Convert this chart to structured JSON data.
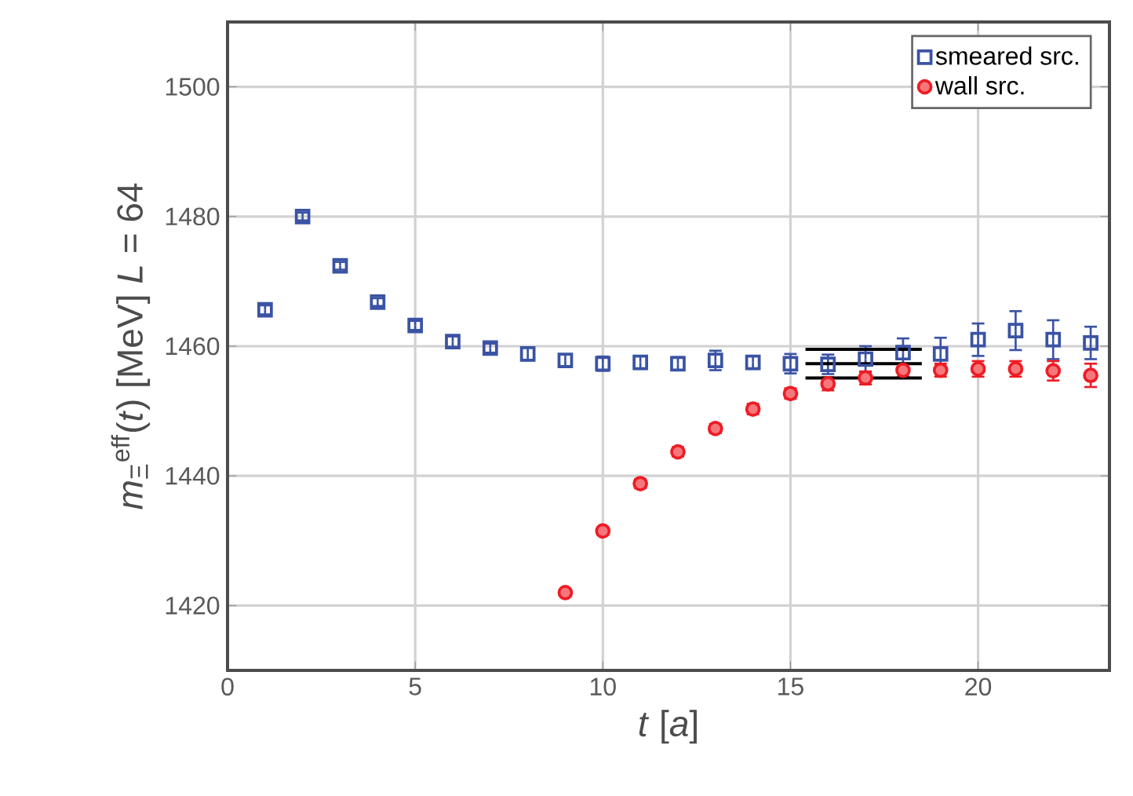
{
  "chart_data": {
    "type": "scatter",
    "xlabel": "*t* [*a*]",
    "ylabel": "*m*$_{Ξ}$$^{eff}$(*t*) [MeV] *L* = 64",
    "xlim": [
      0,
      23.5
    ],
    "ylim": [
      1410,
      1510
    ],
    "xticks": [
      0,
      5,
      10,
      15,
      20
    ],
    "yticks": [
      1420,
      1440,
      1460,
      1480,
      1500
    ],
    "grid": true,
    "legend": "top right",
    "series": [
      {
        "name": "smeared src.",
        "color": "#3a53a4",
        "marker": "square",
        "x": [
          1,
          2,
          3,
          4,
          5,
          6,
          7,
          8,
          9,
          10,
          11,
          12,
          13,
          14,
          15,
          16,
          17,
          18,
          19,
          20,
          21,
          22,
          23
        ],
        "values": [
          1465.6,
          1480,
          1472.4,
          1466.8,
          1463.2,
          1460.7,
          1459.7,
          1458.8,
          1457.8,
          1457.3,
          1457.5,
          1457.3,
          1457.8,
          1457.5,
          1457.3,
          1457.2,
          1458,
          1459,
          1458.8,
          1461,
          1462.4,
          1461,
          1460.5
        ],
        "errors": [
          0.7,
          0.6,
          0.6,
          0.6,
          0.7,
          0.8,
          0.7,
          1,
          0.9,
          1.1,
          1,
          1,
          1.5,
          1,
          1.5,
          1.5,
          2,
          2.2,
          2.5,
          2.5,
          3,
          3,
          2.5
        ]
      },
      {
        "name": "wall src.",
        "color": "#ee1c25",
        "marker": "circle",
        "x": [
          9,
          10,
          11,
          12,
          13,
          14,
          15,
          16,
          17,
          18,
          19,
          20,
          21,
          22,
          23
        ],
        "values": [
          1422,
          1431.5,
          1438.8,
          1443.7,
          1447.3,
          1450.3,
          1452.7,
          1454.2,
          1455.1,
          1456.3,
          1456.3,
          1456.5,
          1456.5,
          1456.2,
          1455.5
        ],
        "errors": [
          0.5,
          0.6,
          0.7,
          0.7,
          0.7,
          0.8,
          0.8,
          1,
          1,
          1,
          1,
          1.2,
          1.2,
          1.5,
          1.8
        ]
      },
      {
        "type": "line",
        "color": "#000000",
        "x": [
          15.4,
          18.5
        ],
        "values": [
          1459.5,
          1459.5
        ]
      },
      {
        "type": "line",
        "color": "#000000",
        "x": [
          15.4,
          18.5
        ],
        "values": [
          1457.3,
          1457.3
        ]
      },
      {
        "type": "line",
        "color": "#000000",
        "x": [
          15.4,
          18.5
        ],
        "values": [
          1455.1,
          1455.1
        ]
      }
    ]
  }
}
